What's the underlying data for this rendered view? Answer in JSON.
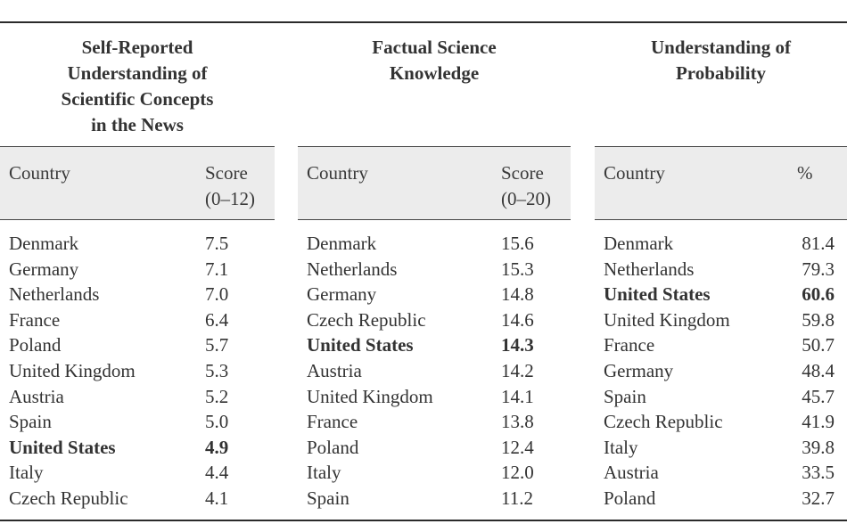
{
  "panels": [
    {
      "title": "Self-Reported\nUnderstanding of\nScientific Concepts\nin the News",
      "col_country": "Country",
      "col_value": "Score\n(0–12)",
      "rows": [
        {
          "country": "Denmark",
          "value": "7.5",
          "bold": false
        },
        {
          "country": "Germany",
          "value": "7.1",
          "bold": false
        },
        {
          "country": "Netherlands",
          "value": "7.0",
          "bold": false
        },
        {
          "country": "France",
          "value": "6.4",
          "bold": false
        },
        {
          "country": "Poland",
          "value": "5.7",
          "bold": false
        },
        {
          "country": "United Kingdom",
          "value": "5.3",
          "bold": false
        },
        {
          "country": "Austria",
          "value": "5.2",
          "bold": false
        },
        {
          "country": "Spain",
          "value": "5.0",
          "bold": false
        },
        {
          "country": "United States",
          "value": "4.9",
          "bold": true
        },
        {
          "country": "Italy",
          "value": "4.4",
          "bold": false
        },
        {
          "country": "Czech Republic",
          "value": "4.1",
          "bold": false
        }
      ]
    },
    {
      "title": "Factual Science\nKnowledge",
      "col_country": "Country",
      "col_value": "Score\n(0–20)",
      "rows": [
        {
          "country": "Denmark",
          "value": "15.6",
          "bold": false
        },
        {
          "country": "Netherlands",
          "value": "15.3",
          "bold": false
        },
        {
          "country": "Germany",
          "value": "14.8",
          "bold": false
        },
        {
          "country": "Czech Republic",
          "value": "14.6",
          "bold": false
        },
        {
          "country": "United States",
          "value": "14.3",
          "bold": true
        },
        {
          "country": "Austria",
          "value": "14.2",
          "bold": false
        },
        {
          "country": "United Kingdom",
          "value": "14.1",
          "bold": false
        },
        {
          "country": "France",
          "value": "13.8",
          "bold": false
        },
        {
          "country": "Poland",
          "value": "12.4",
          "bold": false
        },
        {
          "country": "Italy",
          "value": "12.0",
          "bold": false
        },
        {
          "country": "Spain",
          "value": "11.2",
          "bold": false
        }
      ]
    },
    {
      "title": "Understanding of\nProbability",
      "col_country": "Country",
      "col_value": "%",
      "rows": [
        {
          "country": "Denmark",
          "value": "81.4",
          "bold": false
        },
        {
          "country": "Netherlands",
          "value": "79.3",
          "bold": false
        },
        {
          "country": "United States",
          "value": "60.6",
          "bold": true
        },
        {
          "country": "United Kingdom",
          "value": "59.8",
          "bold": false
        },
        {
          "country": "France",
          "value": "50.7",
          "bold": false
        },
        {
          "country": "Germany",
          "value": "48.4",
          "bold": false
        },
        {
          "country": "Spain",
          "value": "45.7",
          "bold": false
        },
        {
          "country": "Czech Republic",
          "value": "41.9",
          "bold": false
        },
        {
          "country": "Italy",
          "value": "39.8",
          "bold": false
        },
        {
          "country": "Austria",
          "value": "33.5",
          "bold": false
        },
        {
          "country": "Poland",
          "value": "32.7",
          "bold": false
        }
      ]
    }
  ]
}
